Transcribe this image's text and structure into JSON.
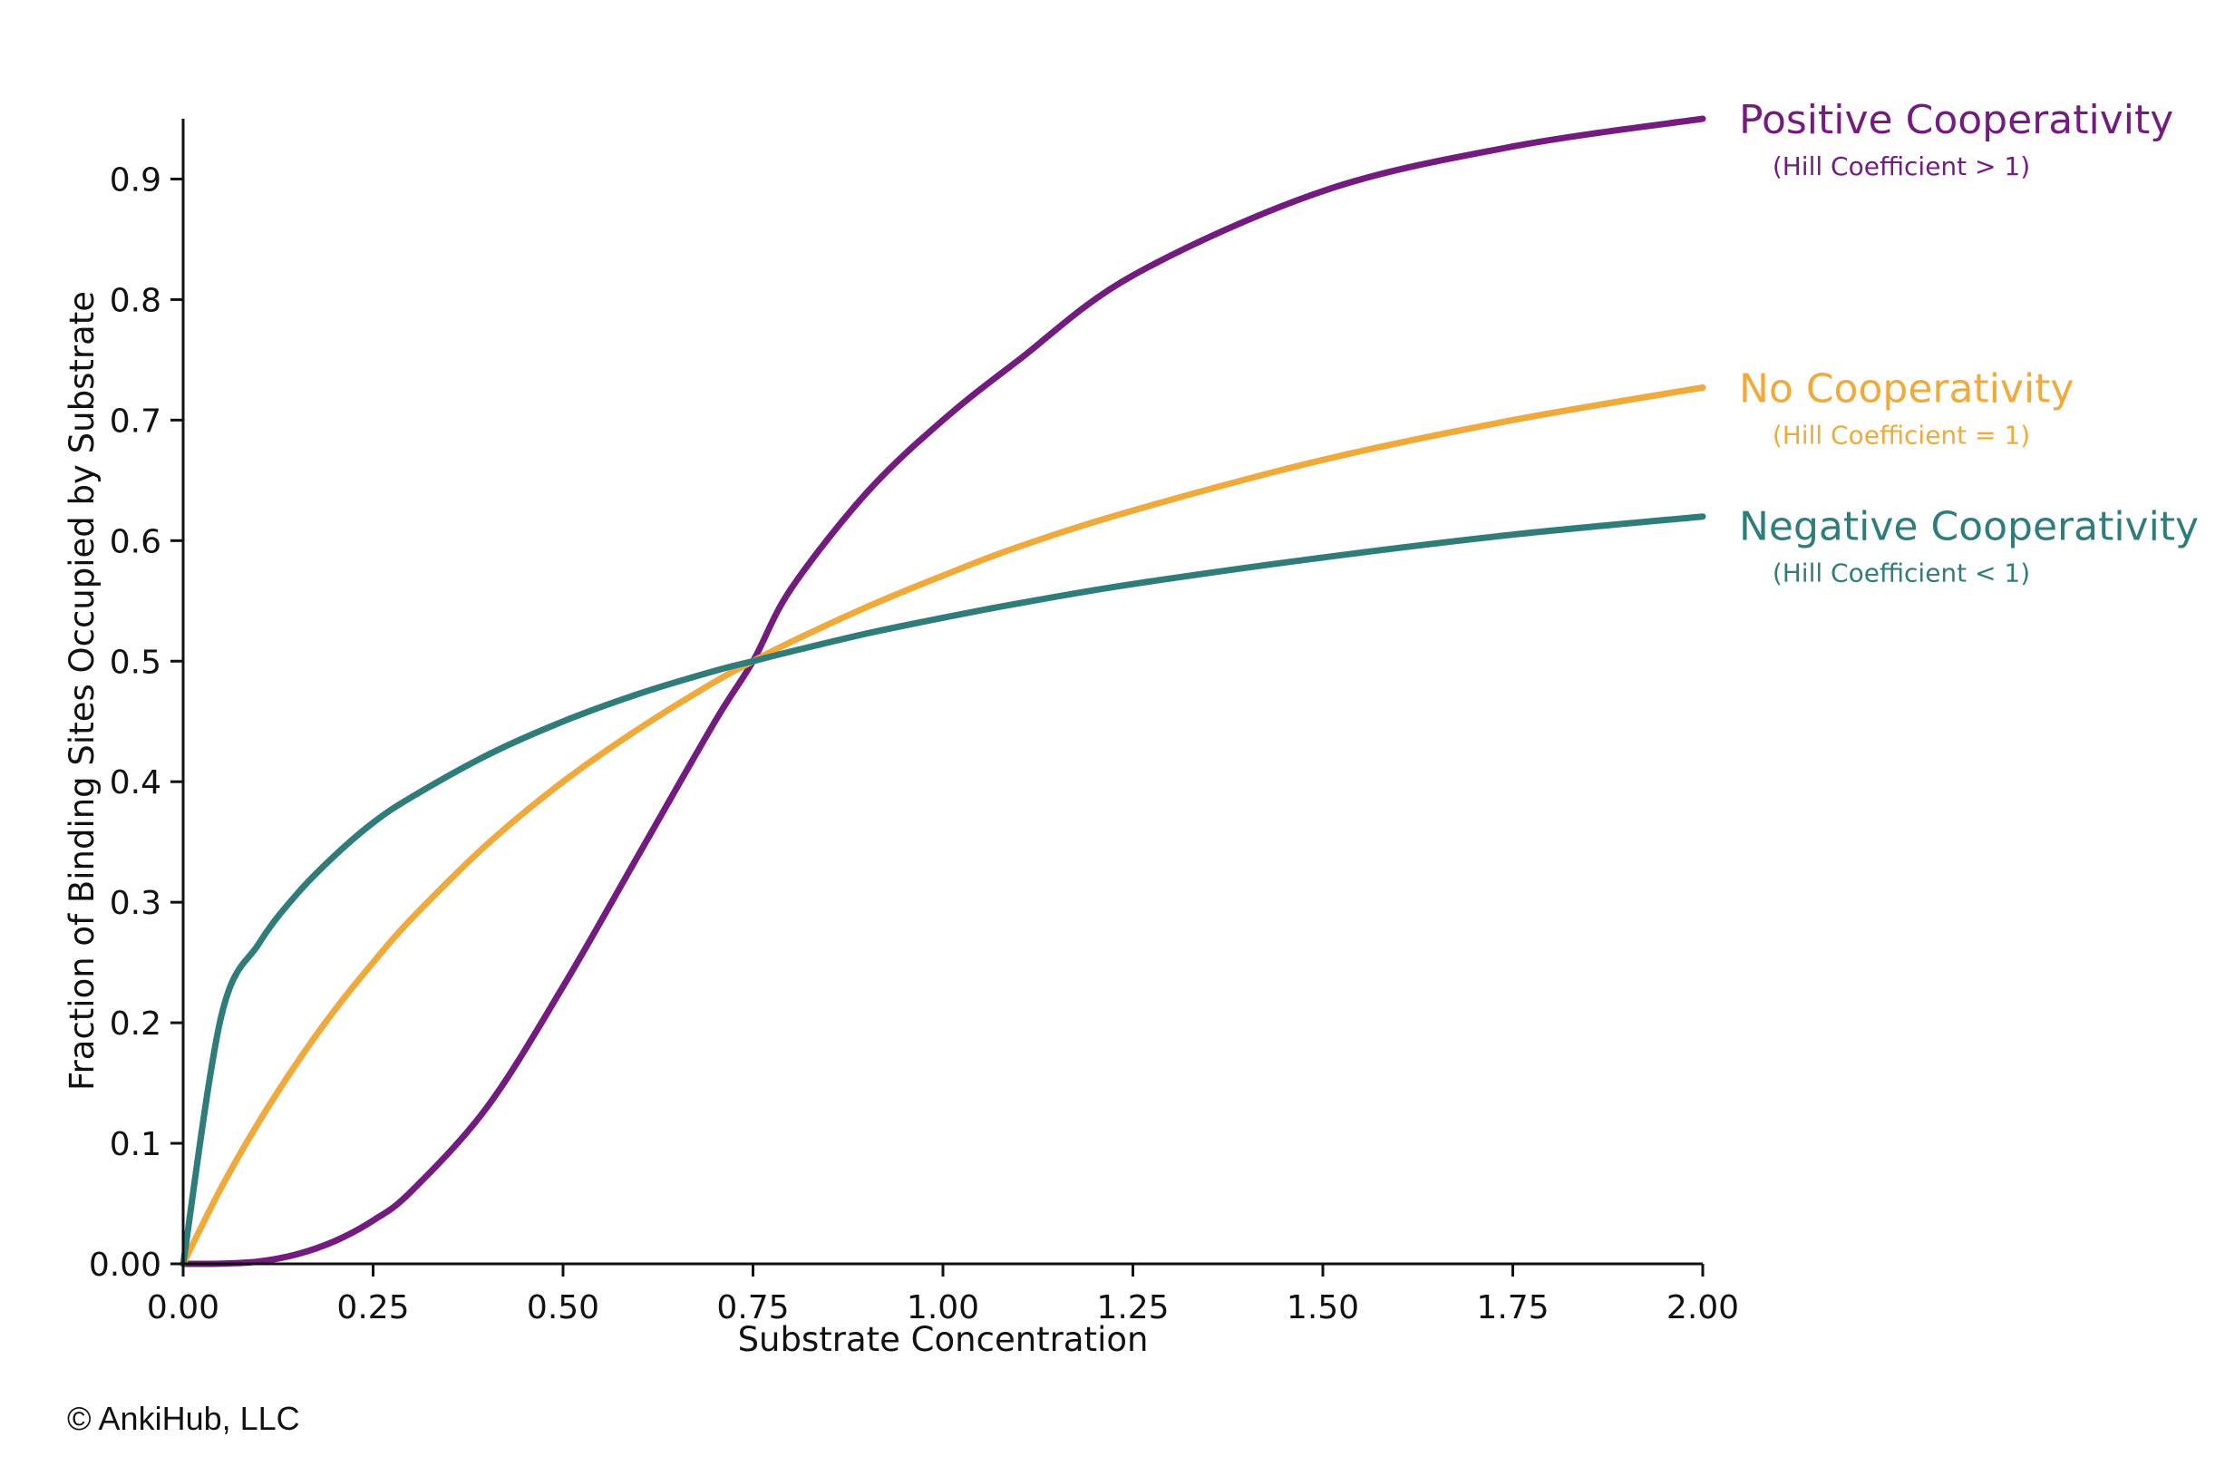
{
  "chart_data": {
    "type": "line",
    "xlabel": "Substrate Concentration",
    "ylabel": "Fraction of Binding Sites Occupied by Substrate",
    "xlim": [
      0,
      2.0
    ],
    "ylim": [
      0,
      0.95
    ],
    "grid": false,
    "legend": "direct labels at right end of each line",
    "x_ticks": [
      "0.00",
      "0.25",
      "0.50",
      "0.75",
      "1.00",
      "1.25",
      "1.50",
      "1.75",
      "2.00"
    ],
    "x_tick_values": [
      0,
      0.25,
      0.5,
      0.75,
      1.0,
      1.25,
      1.5,
      1.75,
      2.0
    ],
    "y_ticks": [
      "0.00",
      "0.1",
      "0.2",
      "0.3",
      "0.4",
      "0.5",
      "0.6",
      "0.7",
      "0.8",
      "0.9"
    ],
    "y_tick_values": [
      0,
      0.1,
      0.2,
      0.3,
      0.4,
      0.5,
      0.6,
      0.7,
      0.8,
      0.9
    ],
    "x": [
      0,
      0.05,
      0.1,
      0.15,
      0.2,
      0.25,
      0.3,
      0.4,
      0.5,
      0.6,
      0.7,
      0.75,
      0.8,
      0.9,
      1.0,
      1.1,
      1.25,
      1.5,
      1.75,
      2.0
    ],
    "series": [
      {
        "name": "Positive Cooperativity",
        "subtitle": "(Hill Coefficient > 1)",
        "color": "#741b7f",
        "values": [
          0,
          0.0002,
          0.002,
          0.008,
          0.019,
          0.036,
          0.06,
          0.13,
          0.23,
          0.34,
          0.45,
          0.5,
          0.56,
          0.64,
          0.7,
          0.75,
          0.82,
          0.89,
          0.927,
          0.95
        ]
      },
      {
        "name": "No Cooperativity",
        "subtitle": "(Hill Coefficient = 1)",
        "color": "#f0a93b",
        "values": [
          0,
          0.063,
          0.118,
          0.167,
          0.211,
          0.25,
          0.286,
          0.348,
          0.4,
          0.444,
          0.483,
          0.5,
          0.516,
          0.545,
          0.571,
          0.595,
          0.625,
          0.667,
          0.7,
          0.727
        ]
      },
      {
        "name": "Negative Cooperativity",
        "subtitle": "(Hill Coefficient < 1)",
        "color": "#2f7d7a",
        "values": [
          0,
          0.205,
          0.266,
          0.307,
          0.339,
          0.366,
          0.387,
          0.422,
          0.45,
          0.473,
          0.492,
          0.5,
          0.508,
          0.523,
          0.536,
          0.548,
          0.564,
          0.586,
          0.605,
          0.62
        ]
      }
    ]
  },
  "footer": {
    "copyright": "© AnkiHub, LLC"
  }
}
